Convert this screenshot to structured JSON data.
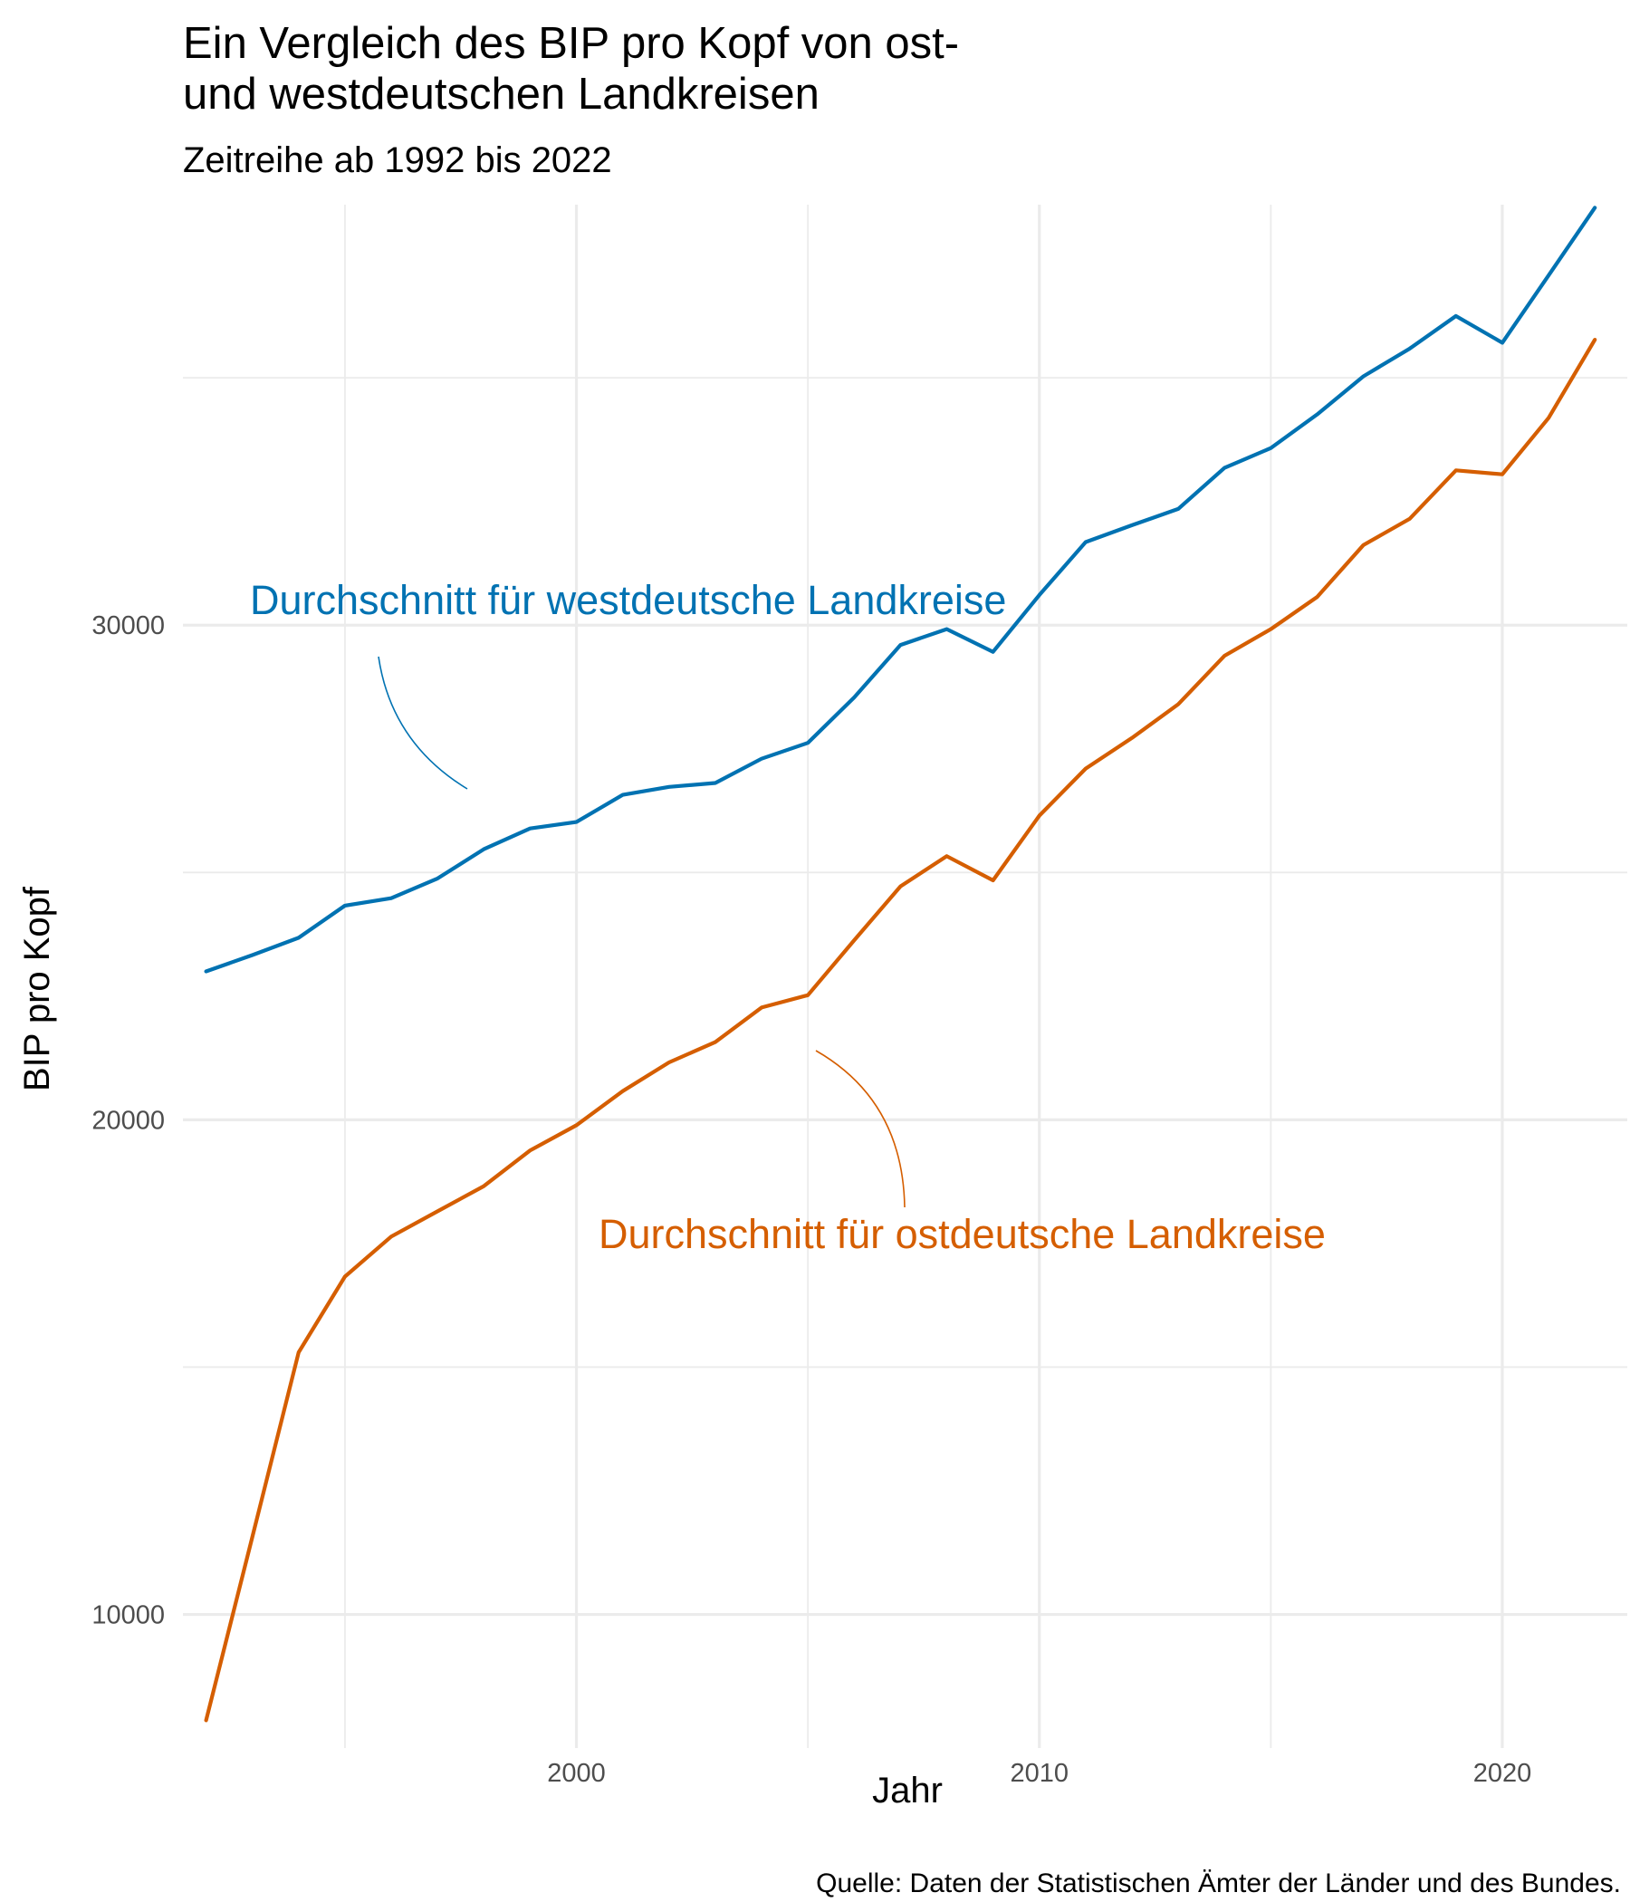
{
  "colors": {
    "west": "#0072b2",
    "ost": "#d55e00"
  },
  "chart_data": {
    "type": "line",
    "title_lines": [
      "Ein Vergleich des BIP pro Kopf von ost-",
      "und westdeutschen Landkreisen"
    ],
    "subtitle": "Zeitreihe ab 1992 bis 2022",
    "xlabel": "Jahr",
    "ylabel": "BIP pro Kopf",
    "caption": "Quelle: Daten der Statistischen Ämter der Länder und des Bundes.",
    "xlim": [
      1991.5,
      2022.7
    ],
    "ylim": [
      7300,
      38500
    ],
    "x_ticks": [
      2000,
      2010,
      2020
    ],
    "x_tick_labels": [
      "2000",
      "2010",
      "2020"
    ],
    "x_minor_ticks": [
      1995,
      2005,
      2015
    ],
    "y_ticks": [
      10000,
      20000,
      30000
    ],
    "y_tick_labels": [
      "10000",
      "20000",
      "30000"
    ],
    "y_minor_ticks": [
      15000,
      25000,
      35000
    ],
    "grid": true,
    "legend": "none",
    "x": [
      1992,
      1993,
      1994,
      1995,
      1996,
      1997,
      1998,
      1999,
      2000,
      2001,
      2002,
      2003,
      2004,
      2005,
      2006,
      2007,
      2008,
      2009,
      2010,
      2011,
      2012,
      2013,
      2014,
      2015,
      2016,
      2017,
      2018,
      2019,
      2020,
      2021,
      2022
    ],
    "series": [
      {
        "key": "west",
        "values": [
          23000,
          23330,
          23680,
          24330,
          24480,
          24880,
          25470,
          25890,
          26020,
          26570,
          26730,
          26810,
          27300,
          27620,
          28540,
          29600,
          29920,
          29460,
          30610,
          31680,
          32020,
          32350,
          33180,
          33580,
          34260,
          35030,
          35590,
          36250,
          35710,
          37070,
          38440
        ]
      },
      {
        "key": "ost",
        "values": [
          7860,
          11570,
          15300,
          16830,
          17640,
          18150,
          18660,
          19380,
          19890,
          20580,
          21160,
          21570,
          22270,
          22520,
          23630,
          24720,
          25330,
          24840,
          26150,
          27100,
          27720,
          28400,
          29380,
          29920,
          30570,
          31620,
          32150,
          33130,
          33050,
          34190,
          35770
        ]
      }
    ],
    "annotations": [
      {
        "key": "west",
        "text": "Durchschnitt für westdeutsche Landkreise"
      },
      {
        "key": "ost",
        "text": "Durchschnitt für ostdeutsche Landkreise"
      }
    ]
  }
}
